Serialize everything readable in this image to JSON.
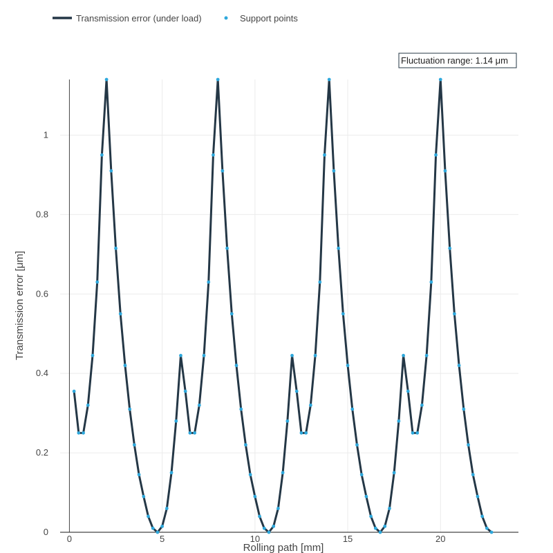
{
  "chart_data": {
    "type": "line",
    "xlabel": "Rolling path [mm]",
    "ylabel": "Transmission error [μm]",
    "xlim": [
      -0.5,
      24.2
    ],
    "ylim": [
      0,
      1.14
    ],
    "xticks": [
      0,
      5,
      10,
      15,
      20
    ],
    "yticks": [
      0,
      0.2,
      0.4,
      0.6,
      0.8,
      1
    ],
    "ytick_labels": [
      "0",
      "0.2",
      "0.4",
      "0.6",
      "0.8",
      "1"
    ],
    "grid": true,
    "legend_position": "top-left",
    "annotation": "Fluctuation range: 1.14 μm",
    "colors": {
      "line": "#243746",
      "points": "#2ea8dc",
      "grid": "#ebebeb",
      "axis": "#444444"
    },
    "series": [
      {
        "name": "Transmission error (under load)",
        "kind": "line",
        "x": [
          0.25,
          0.5,
          0.75,
          1.0,
          1.25,
          1.5,
          1.75,
          2.0,
          2.25,
          2.5,
          2.75,
          3.0,
          3.25,
          3.5,
          3.75,
          4.0,
          4.25,
          4.5,
          4.75,
          5.0,
          5.25,
          5.5,
          5.75,
          6.0,
          6.25,
          6.5,
          6.75,
          7.0,
          7.25,
          7.5,
          7.75,
          8.0,
          8.25,
          8.5,
          8.75,
          9.0,
          9.25,
          9.5,
          9.75,
          10.0,
          10.25,
          10.5,
          10.75,
          11.0,
          11.25,
          11.5,
          11.75,
          12.0,
          12.25,
          12.5,
          12.75,
          13.0,
          13.25,
          13.5,
          13.75,
          14.0,
          14.25,
          14.5,
          14.75,
          15.0,
          15.25,
          15.5,
          15.75,
          16.0,
          16.25,
          16.5,
          16.75,
          17.0,
          17.25,
          17.5,
          17.75,
          18.0,
          18.25,
          18.5,
          18.75,
          19.0,
          19.25,
          19.5,
          19.75,
          20.0,
          20.25,
          20.5,
          20.75,
          21.0,
          21.25,
          21.5,
          21.75,
          22.0,
          22.25,
          22.5,
          22.75
        ],
        "y": [
          0.355,
          0.25,
          0.25,
          0.32,
          0.445,
          0.63,
          0.95,
          1.14,
          0.91,
          0.715,
          0.55,
          0.42,
          0.31,
          0.22,
          0.145,
          0.09,
          0.04,
          0.01,
          0.0,
          0.015,
          0.06,
          0.15,
          0.28,
          0.445,
          0.355,
          0.25,
          0.25,
          0.32,
          0.445,
          0.63,
          0.95,
          1.14,
          0.91,
          0.715,
          0.55,
          0.42,
          0.31,
          0.22,
          0.145,
          0.09,
          0.04,
          0.01,
          0.0,
          0.015,
          0.06,
          0.15,
          0.28,
          0.445,
          0.355,
          0.25,
          0.25,
          0.32,
          0.445,
          0.63,
          0.95,
          1.14,
          0.91,
          0.715,
          0.55,
          0.42,
          0.31,
          0.22,
          0.145,
          0.09,
          0.04,
          0.01,
          0.0,
          0.015,
          0.06,
          0.15,
          0.28,
          0.445,
          0.355,
          0.25,
          0.25,
          0.32,
          0.445,
          0.63,
          0.95,
          1.14,
          0.91,
          0.715,
          0.55,
          0.42,
          0.31,
          0.22,
          0.145,
          0.09,
          0.04,
          0.01,
          0.0
        ]
      },
      {
        "name": "Support points",
        "kind": "markers",
        "same_as_series": 0
      }
    ]
  }
}
